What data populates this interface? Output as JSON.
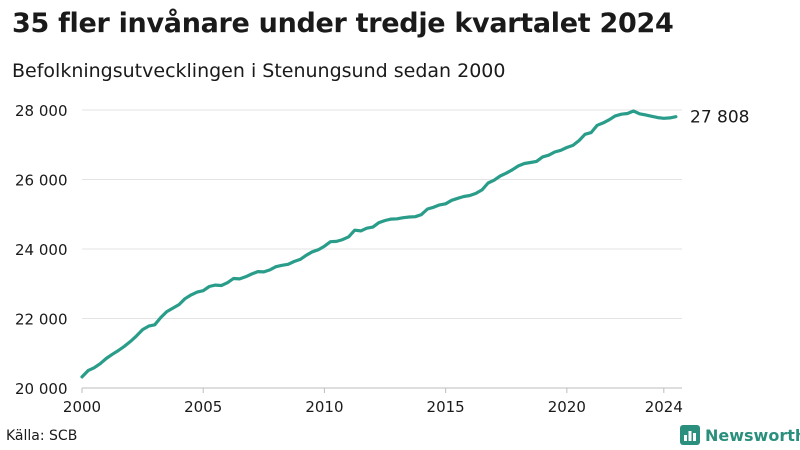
{
  "title": "35 fler invånare under tredje kvartalet 2024",
  "subtitle": "Befolkningsutvecklingen i Stenungsund sedan 2000",
  "source": "Källa: SCB",
  "brand": {
    "name": "Newsworthy",
    "icon": "bar-chart-logo-icon"
  },
  "colors": {
    "line": "#2a9d8a",
    "grid": "#e3e3e3",
    "brand": "#2b8f7e",
    "text": "#1a1a1a"
  },
  "chart_data": {
    "type": "line",
    "title": "35 fler invånare under tredje kvartalet 2024",
    "subtitle": "Befolkningsutvecklingen i Stenungsund sedan 2000",
    "xlim": [
      2000,
      2024.75
    ],
    "ylim": [
      20000,
      28000
    ],
    "x_ticks": [
      {
        "value": 2000,
        "label": "2000"
      },
      {
        "value": 2005,
        "label": "2005"
      },
      {
        "value": 2010,
        "label": "2010"
      },
      {
        "value": 2015,
        "label": "2015"
      },
      {
        "value": 2020,
        "label": "2020"
      },
      {
        "value": 2024,
        "label": "2024"
      }
    ],
    "y_ticks": [
      {
        "value": 20000,
        "label": "20 000"
      },
      {
        "value": 22000,
        "label": "22 000"
      },
      {
        "value": 24000,
        "label": "24 000"
      },
      {
        "value": 26000,
        "label": "26 000"
      },
      {
        "value": 28000,
        "label": "28 000"
      }
    ],
    "grid": "horizontal",
    "end_label": "27 808",
    "series": [
      {
        "x": [
          2000.0,
          2000.25,
          2000.5,
          2000.75,
          2001.0,
          2001.25,
          2001.5,
          2001.75,
          2002.0,
          2002.25,
          2002.5,
          2002.75,
          2003.0,
          2003.25,
          2003.5,
          2003.75,
          2004.0,
          2004.25,
          2004.5,
          2004.75,
          2005.0,
          2005.25,
          2005.5,
          2005.75,
          2006.0,
          2006.25,
          2006.5,
          2006.75,
          2007.0,
          2007.25,
          2007.5,
          2007.75,
          2008.0,
          2008.25,
          2008.5,
          2008.75,
          2009.0,
          2009.25,
          2009.5,
          2009.75,
          2010.0,
          2010.25,
          2010.5,
          2010.75,
          2011.0,
          2011.25,
          2011.5,
          2011.75,
          2012.0,
          2012.25,
          2012.5,
          2012.75,
          2013.0,
          2013.25,
          2013.5,
          2013.75,
          2014.0,
          2014.25,
          2014.5,
          2014.75,
          2015.0,
          2015.25,
          2015.5,
          2015.75,
          2016.0,
          2016.25,
          2016.5,
          2016.75,
          2017.0,
          2017.25,
          2017.5,
          2017.75,
          2018.0,
          2018.25,
          2018.5,
          2018.75,
          2019.0,
          2019.25,
          2019.5,
          2019.75,
          2020.0,
          2020.25,
          2020.5,
          2020.75,
          2021.0,
          2021.25,
          2021.5,
          2021.75,
          2022.0,
          2022.25,
          2022.5,
          2022.75,
          2023.0,
          2023.25,
          2023.5,
          2023.75,
          2024.0,
          2024.25,
          2024.5
        ],
        "y": [
          20320,
          20500,
          20580,
          20700,
          20850,
          20970,
          21080,
          21200,
          21340,
          21500,
          21680,
          21780,
          21820,
          22030,
          22200,
          22300,
          22400,
          22570,
          22680,
          22760,
          22800,
          22920,
          22960,
          22950,
          23030,
          23150,
          23140,
          23200,
          23280,
          23350,
          23340,
          23400,
          23490,
          23530,
          23560,
          23640,
          23700,
          23820,
          23920,
          23980,
          24080,
          24210,
          24220,
          24270,
          24350,
          24540,
          24520,
          24600,
          24630,
          24760,
          24820,
          24860,
          24870,
          24900,
          24920,
          24930,
          24990,
          25150,
          25200,
          25270,
          25300,
          25400,
          25460,
          25510,
          25540,
          25600,
          25700,
          25900,
          25980,
          26100,
          26180,
          26280,
          26390,
          26460,
          26490,
          26520,
          26650,
          26700,
          26790,
          26840,
          26920,
          26980,
          27120,
          27300,
          27350,
          27560,
          27630,
          27720,
          27830,
          27880,
          27900,
          27970,
          27890,
          27860,
          27820,
          27780,
          27760,
          27773,
          27808
        ]
      }
    ]
  }
}
